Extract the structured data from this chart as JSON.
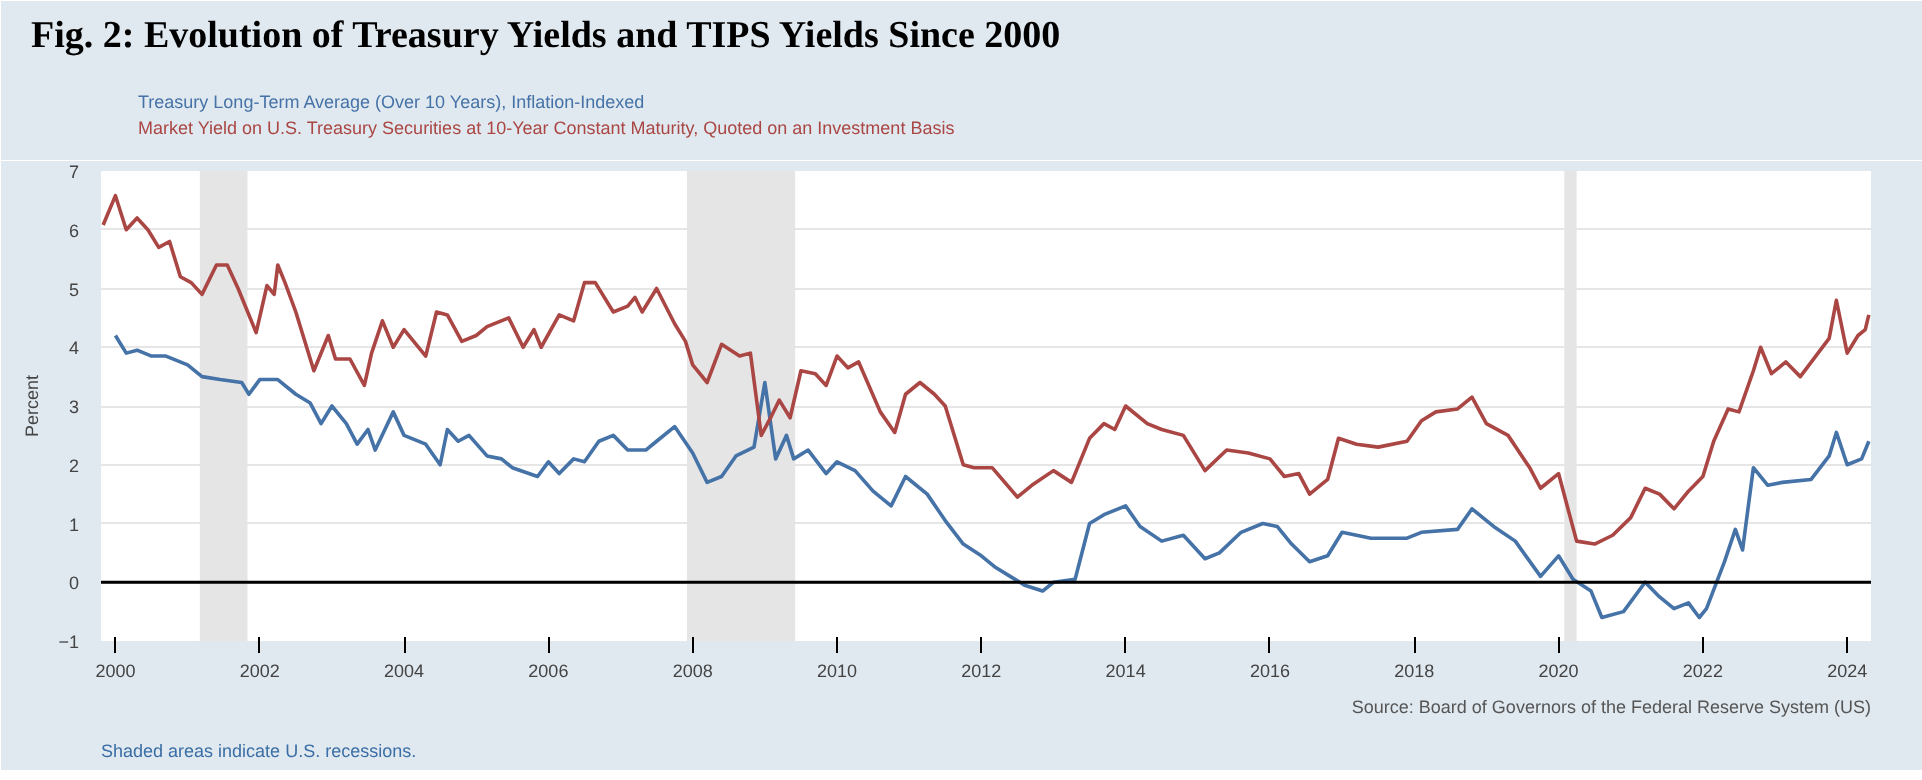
{
  "chart_data": {
    "type": "line",
    "title": "Fig. 2: Evolution of Treasury Yields and TIPS Yields Since 2000",
    "ylabel": "Percent",
    "annotations": [
      "Shaded areas indicate U.S. recessions.",
      "Source: Board of Governors of the Federal Reserve System (US)"
    ],
    "xlim": [
      1999.8,
      2024.33
    ],
    "xticks": [
      2000,
      2002,
      2004,
      2006,
      2008,
      2010,
      2012,
      2014,
      2016,
      2018,
      2020,
      2022,
      2024
    ],
    "ylim": [
      -1,
      7
    ],
    "yticks": [
      -1,
      0,
      1,
      2,
      3,
      4,
      5,
      6,
      7
    ],
    "grid": "y",
    "legend": "top left",
    "marker": "none",
    "line_style": "solid",
    "series": [
      {
        "name": "Treasury Long-Term Average (Over 10 Years), Inflation-Indexed",
        "color": "#4572a7",
        "x": [
          2000.0,
          2000.15,
          2000.3,
          2000.5,
          2000.7,
          2001.0,
          2001.2,
          2001.45,
          2001.75,
          2001.85,
          2002.0,
          2002.25,
          2002.5,
          2002.7,
          2002.85,
          2003.0,
          2003.2,
          2003.35,
          2003.5,
          2003.6,
          2003.85,
          2004.0,
          2004.3,
          2004.5,
          2004.6,
          2004.75,
          2004.9,
          2005.15,
          2005.35,
          2005.5,
          2005.85,
          2006.0,
          2006.15,
          2006.35,
          2006.5,
          2006.7,
          2006.9,
          2007.1,
          2007.35,
          2007.5,
          2007.75,
          2008.0,
          2008.2,
          2008.4,
          2008.6,
          2008.85,
          2009.0,
          2009.15,
          2009.3,
          2009.4,
          2009.6,
          2009.85,
          2010.0,
          2010.25,
          2010.5,
          2010.75,
          2010.95,
          2011.25,
          2011.5,
          2011.75,
          2012.0,
          2012.2,
          2012.4,
          2012.6,
          2012.85,
          2013.0,
          2013.3,
          2013.5,
          2013.7,
          2014.0,
          2014.2,
          2014.5,
          2014.8,
          2015.1,
          2015.3,
          2015.6,
          2015.9,
          2016.1,
          2016.3,
          2016.55,
          2016.8,
          2017.0,
          2017.4,
          2017.9,
          2018.1,
          2018.6,
          2018.8,
          2019.1,
          2019.4,
          2019.75,
          2020.0,
          2020.2,
          2020.45,
          2020.6,
          2020.9,
          2021.2,
          2021.4,
          2021.6,
          2021.8,
          2021.95,
          2022.05,
          2022.3,
          2022.45,
          2022.55,
          2022.7,
          2022.9,
          2023.1,
          2023.5,
          2023.75,
          2023.85,
          2024.0,
          2024.2,
          2024.3
        ],
        "values": [
          4.2,
          3.9,
          3.95,
          3.85,
          3.85,
          3.7,
          3.5,
          3.45,
          3.4,
          3.2,
          3.45,
          3.45,
          3.2,
          3.05,
          2.7,
          3.0,
          2.7,
          2.35,
          2.6,
          2.25,
          2.9,
          2.5,
          2.35,
          2.0,
          2.6,
          2.4,
          2.5,
          2.15,
          2.1,
          1.95,
          1.8,
          2.05,
          1.85,
          2.1,
          2.05,
          2.4,
          2.5,
          2.25,
          2.25,
          2.4,
          2.65,
          2.2,
          1.7,
          1.8,
          2.15,
          2.3,
          3.4,
          2.1,
          2.5,
          2.1,
          2.25,
          1.85,
          2.05,
          1.9,
          1.55,
          1.3,
          1.8,
          1.5,
          1.05,
          0.65,
          0.45,
          0.25,
          0.1,
          -0.05,
          -0.15,
          0.0,
          0.05,
          1.0,
          1.15,
          1.3,
          0.95,
          0.7,
          0.8,
          0.4,
          0.5,
          0.85,
          1.0,
          0.95,
          0.65,
          0.35,
          0.45,
          0.85,
          0.75,
          0.75,
          0.85,
          0.9,
          1.25,
          0.95,
          0.7,
          0.1,
          0.45,
          0.05,
          -0.15,
          -0.6,
          -0.5,
          0.0,
          -0.25,
          -0.45,
          -0.35,
          -0.6,
          -0.45,
          0.35,
          0.9,
          0.55,
          1.95,
          1.65,
          1.7,
          1.75,
          2.15,
          2.55,
          2.0,
          2.1,
          2.4
        ]
      },
      {
        "name": "Market Yield on U.S. Treasury Securities at 10-Year Constant Maturity, Quoted on an Investment Basis",
        "color": "#aa4643",
        "x": [
          1999.83,
          2000.0,
          2000.15,
          2000.3,
          2000.45,
          2000.6,
          2000.75,
          2000.9,
          2001.05,
          2001.2,
          2001.4,
          2001.55,
          2001.7,
          2001.95,
          2002.1,
          2002.2,
          2002.25,
          2002.35,
          2002.5,
          2002.75,
          2002.95,
          2003.05,
          2003.25,
          2003.45,
          2003.55,
          2003.7,
          2003.85,
          2004.0,
          2004.3,
          2004.45,
          2004.6,
          2004.8,
          2005.0,
          2005.15,
          2005.45,
          2005.65,
          2005.8,
          2005.9,
          2006.15,
          2006.35,
          2006.5,
          2006.65,
          2006.9,
          2007.1,
          2007.2,
          2007.3,
          2007.5,
          2007.75,
          2007.9,
          2008.0,
          2008.2,
          2008.4,
          2008.65,
          2008.8,
          2008.95,
          2009.1,
          2009.2,
          2009.35,
          2009.5,
          2009.7,
          2009.85,
          2010.0,
          2010.15,
          2010.3,
          2010.6,
          2010.8,
          2010.95,
          2011.15,
          2011.35,
          2011.5,
          2011.75,
          2011.9,
          2012.15,
          2012.5,
          2012.7,
          2013.0,
          2013.25,
          2013.5,
          2013.7,
          2013.85,
          2014.0,
          2014.3,
          2014.5,
          2014.8,
          2015.1,
          2015.4,
          2015.7,
          2016.0,
          2016.2,
          2016.4,
          2016.55,
          2016.8,
          2016.95,
          2017.2,
          2017.5,
          2017.9,
          2018.1,
          2018.3,
          2018.6,
          2018.8,
          2019.0,
          2019.3,
          2019.6,
          2019.75,
          2020.0,
          2020.25,
          2020.5,
          2020.75,
          2021.0,
          2021.2,
          2021.4,
          2021.6,
          2021.8,
          2022.0,
          2022.15,
          2022.35,
          2022.5,
          2022.7,
          2022.8,
          2022.95,
          2023.15,
          2023.35,
          2023.75,
          2023.85,
          2024.0,
          2024.15,
          2024.25,
          2024.3
        ],
        "values": [
          6.08,
          6.58,
          6.0,
          6.2,
          6.0,
          5.7,
          5.8,
          5.2,
          5.1,
          4.9,
          5.4,
          5.4,
          5.0,
          4.25,
          5.05,
          4.9,
          5.4,
          5.1,
          4.6,
          3.6,
          4.2,
          3.8,
          3.8,
          3.35,
          3.9,
          4.45,
          4.0,
          4.3,
          3.85,
          4.6,
          4.55,
          4.1,
          4.2,
          4.35,
          4.5,
          4.0,
          4.3,
          4.0,
          4.55,
          4.45,
          5.1,
          5.1,
          4.6,
          4.7,
          4.85,
          4.6,
          5.0,
          4.4,
          4.1,
          3.7,
          3.4,
          4.05,
          3.85,
          3.9,
          2.5,
          2.85,
          3.1,
          2.8,
          3.6,
          3.55,
          3.35,
          3.85,
          3.65,
          3.75,
          2.9,
          2.55,
          3.2,
          3.4,
          3.2,
          3.0,
          2.0,
          1.95,
          1.95,
          1.45,
          1.65,
          1.9,
          1.7,
          2.45,
          2.7,
          2.6,
          3.0,
          2.7,
          2.6,
          2.5,
          1.9,
          2.25,
          2.2,
          2.1,
          1.8,
          1.85,
          1.5,
          1.75,
          2.45,
          2.35,
          2.3,
          2.4,
          2.75,
          2.9,
          2.95,
          3.15,
          2.7,
          2.5,
          1.95,
          1.6,
          1.85,
          0.7,
          0.65,
          0.8,
          1.1,
          1.6,
          1.5,
          1.25,
          1.55,
          1.8,
          2.4,
          2.95,
          2.9,
          3.6,
          4.0,
          3.55,
          3.75,
          3.5,
          4.15,
          4.8,
          3.9,
          4.2,
          4.3,
          4.55
        ]
      }
    ],
    "ref_lines": [
      {
        "axis": "y",
        "value": 0,
        "color": "#000000"
      }
    ],
    "bands": [
      {
        "axis": "x",
        "from": 2001.17,
        "to": 2001.83,
        "color": "#e5e5e5"
      },
      {
        "axis": "x",
        "from": 2007.92,
        "to": 2009.42,
        "color": "#e5e5e5"
      },
      {
        "axis": "x",
        "from": 2020.08,
        "to": 2020.25,
        "color": "#e5e5e5"
      }
    ]
  }
}
